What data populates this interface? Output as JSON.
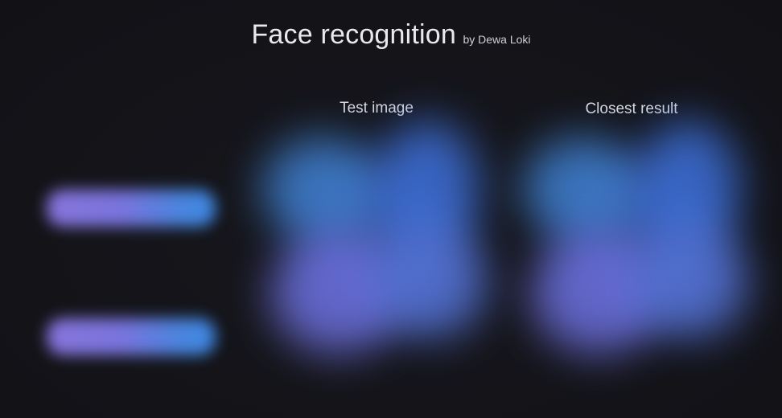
{
  "header": {
    "title": "Face recognition",
    "author": "by Dewa Loki"
  },
  "columns": {
    "test_label": "Test image",
    "result_label": "Closest result"
  },
  "side_buttons": {
    "first_label": "",
    "second_label": ""
  },
  "colors": {
    "background": "#141419",
    "button_gradient_start": "#8e7ae6",
    "button_gradient_end": "#3f8ff0",
    "panel_blue": "#3d6fd8",
    "panel_purple": "#6c6fdc"
  }
}
